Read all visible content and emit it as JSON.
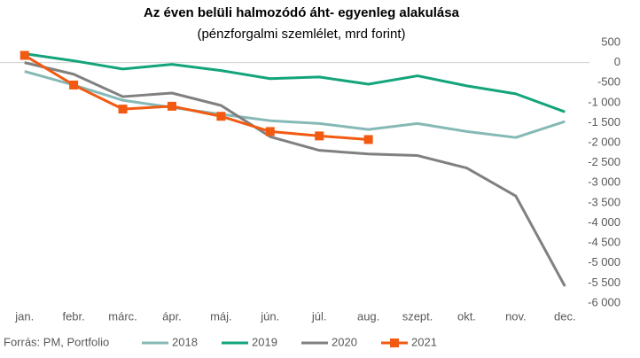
{
  "chart_data": {
    "type": "line",
    "title": "Az éven belüli halmozódó áht- egyenleg alakulása",
    "subtitle": "(pénzforgalmi szemlélet, mrd forint)",
    "source": "Forrás: PM, Portfolio",
    "categories": [
      "jan.",
      "febr.",
      "márc.",
      "ápr.",
      "máj.",
      "jún.",
      "júl.",
      "aug.",
      "szept.",
      "okt.",
      "nov.",
      "dec."
    ],
    "series": [
      {
        "name": "2018",
        "color": "#86b9b6",
        "values": [
          -220,
          -560,
          -940,
          -1120,
          -1290,
          -1450,
          -1520,
          -1670,
          -1520,
          -1720,
          -1870,
          -1470
        ]
      },
      {
        "name": "2019",
        "color": "#13a47b",
        "values": [
          220,
          45,
          -160,
          -45,
          -200,
          -400,
          -360,
          -540,
          -330,
          -580,
          -780,
          -1230
        ]
      },
      {
        "name": "2020",
        "color": "#808080",
        "values": [
          0,
          -290,
          -850,
          -760,
          -1070,
          -1850,
          -2190,
          -2280,
          -2320,
          -2630,
          -3330,
          -5580
        ]
      },
      {
        "name": "2021",
        "color": "#f25a12",
        "marker": "square",
        "values": [
          180,
          -560,
          -1160,
          -1090,
          -1340,
          -1720,
          -1830,
          -1920,
          null,
          null,
          null,
          null
        ]
      }
    ],
    "ylim": [
      -6000,
      500
    ],
    "yticks": [
      500,
      0,
      -500,
      {
        "value": -1000,
        "label": "-1 000"
      },
      {
        "value": -1500,
        "label": "-1 500"
      },
      {
        "value": -2000,
        "label": "-2 000"
      },
      {
        "value": -2500,
        "label": "-2 500"
      },
      {
        "value": -3000,
        "label": "-3 000"
      },
      {
        "value": -3500,
        "label": "-3 500"
      },
      {
        "value": -4000,
        "label": "-4 000"
      },
      {
        "value": -4500,
        "label": "-4 500"
      },
      {
        "value": -5000,
        "label": "-5 000"
      },
      {
        "value": -5500,
        "label": "-5 500"
      },
      {
        "value": -6000,
        "label": "-6 000"
      }
    ],
    "y_axis_side": "right",
    "grid": false,
    "legend": "bottom"
  }
}
